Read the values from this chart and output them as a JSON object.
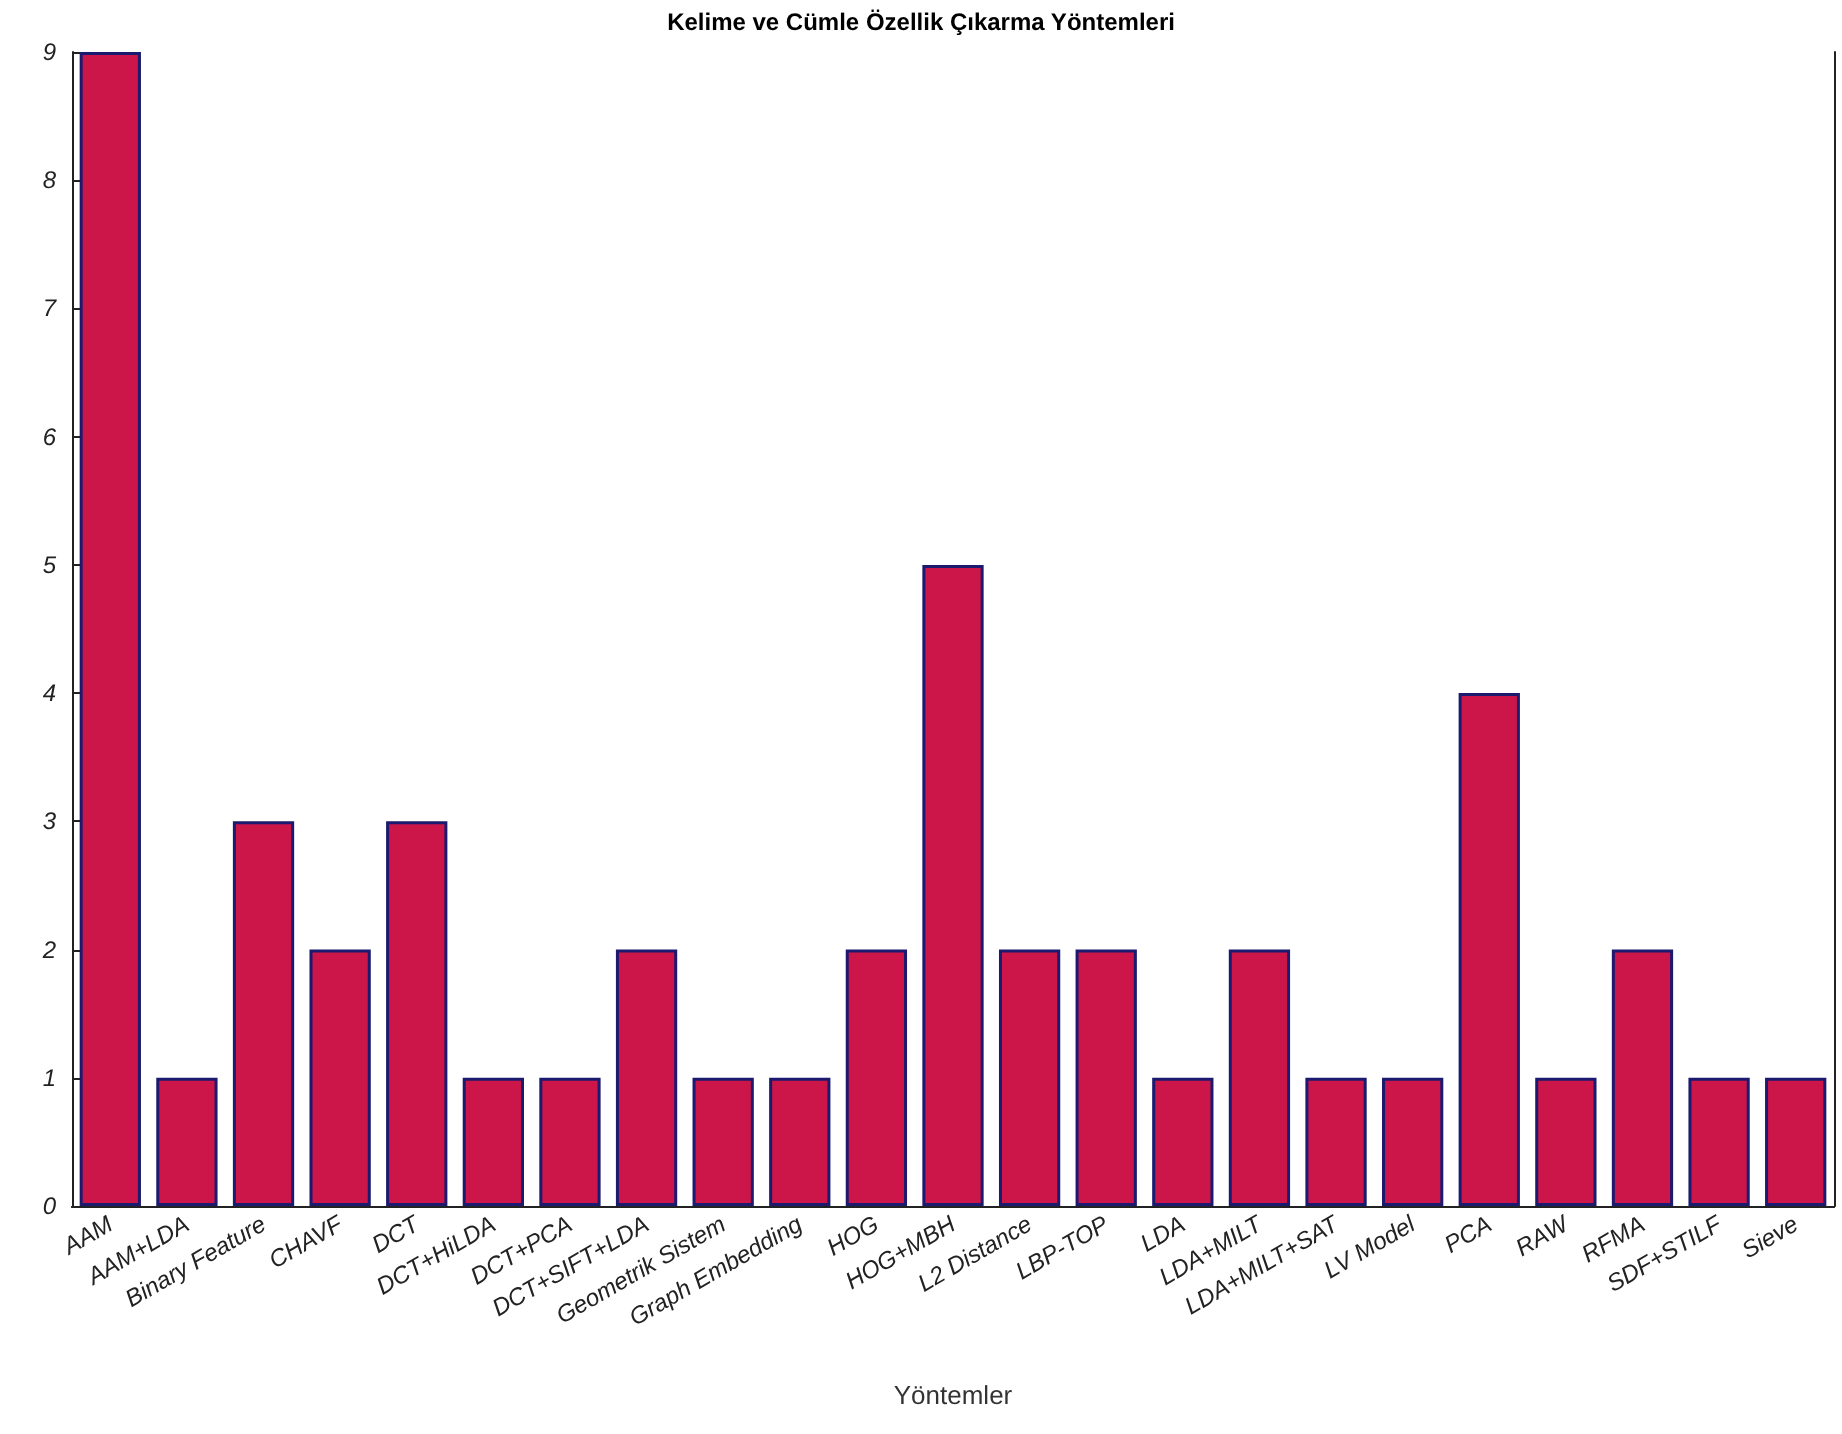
{
  "chart_data": {
    "type": "bar",
    "title": "Kelime ve Cümle Özellik Çıkarma Yöntemleri",
    "xlabel": "Yöntemler",
    "categories": [
      "AAM",
      "AAM+LDA",
      "Binary Feature",
      "CHAVF",
      "DCT",
      "DCT+HiLDA",
      "DCT+PCA",
      "DCT+SIFT+LDA",
      "Geometrik Sistem",
      "Graph Embedding",
      "HOG",
      "HOG+MBH",
      "L2 Distance",
      "LBP-TOP",
      "LDA",
      "LDA+MILT",
      "LDA+MILT+SAT",
      "LV Model",
      "PCA",
      "RAW",
      "RFMA",
      "SDF+STILF",
      "Sieve"
    ],
    "values": [
      9,
      1,
      3,
      2,
      3,
      1,
      1,
      2,
      1,
      1,
      2,
      5,
      2,
      2,
      1,
      2,
      1,
      1,
      4,
      1,
      2,
      1,
      1
    ],
    "color": "#cc1548",
    "ylim": [
      0,
      9
    ],
    "yticks": [
      0,
      1,
      2,
      3,
      4,
      5,
      6,
      7,
      8,
      9
    ],
    "grid": false
  }
}
